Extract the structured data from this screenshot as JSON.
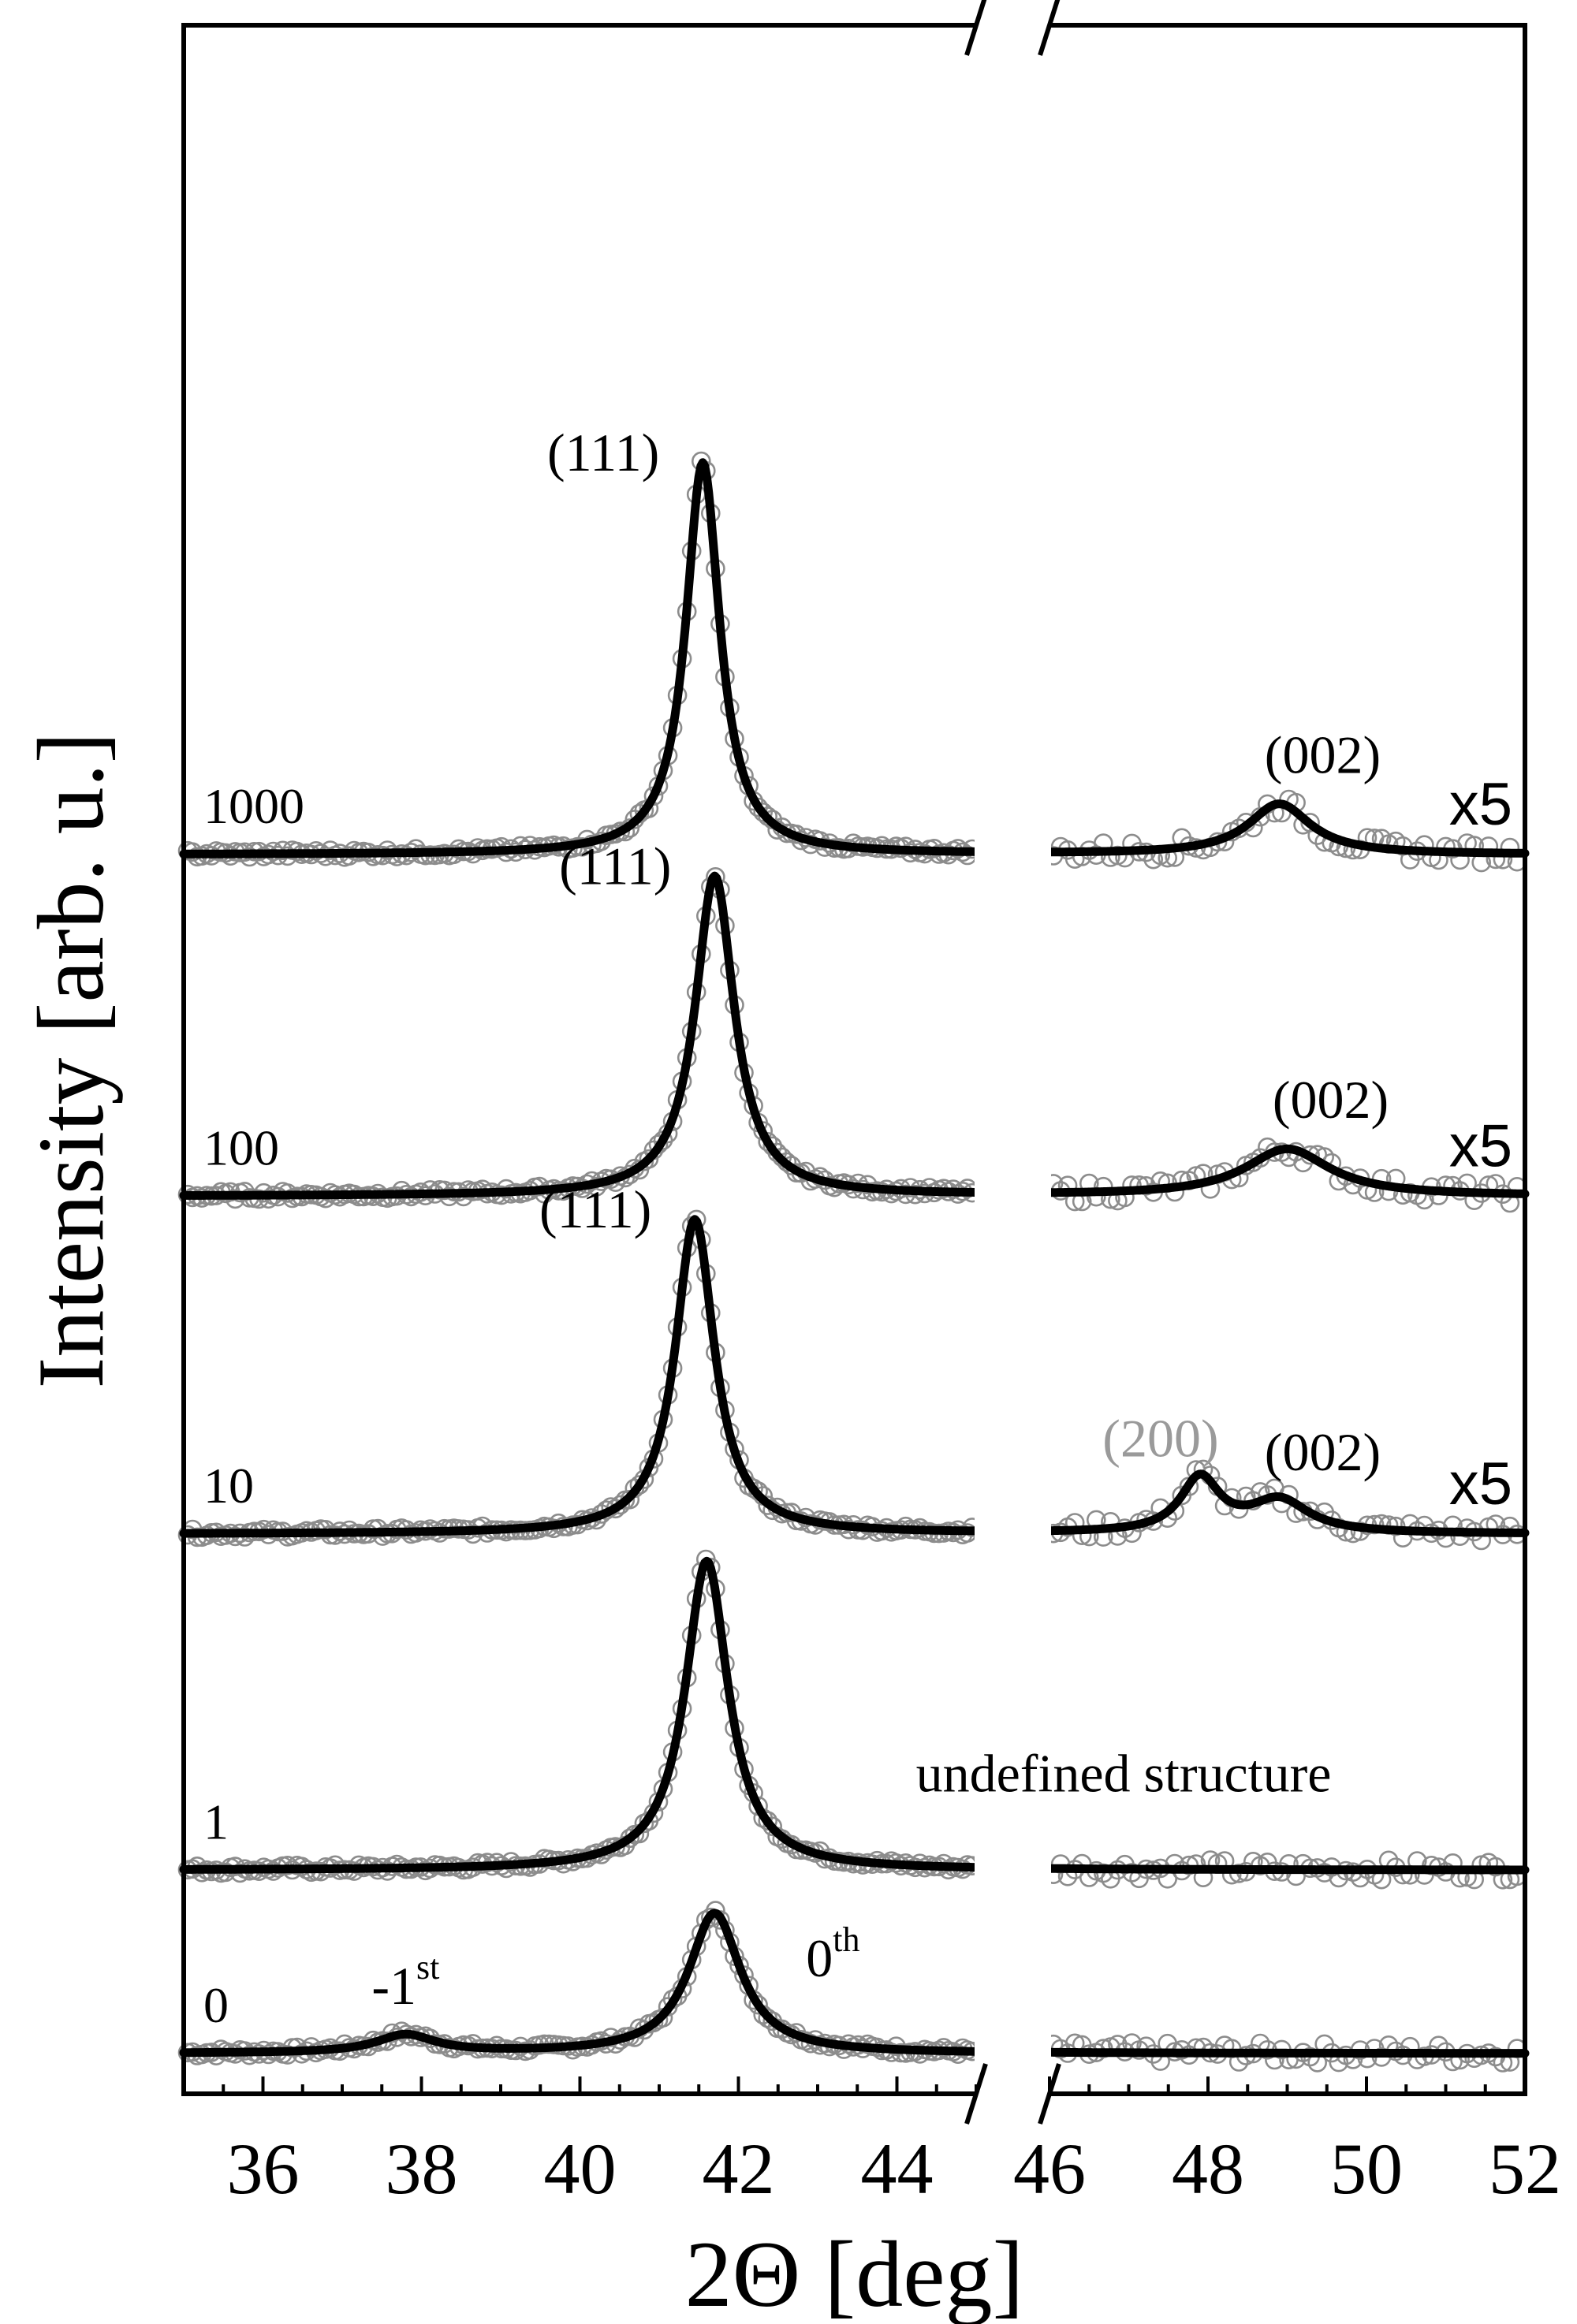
{
  "chart_data": {
    "type": "line",
    "xlabel": "2Θ [deg]",
    "ylabel": "Intensity [arb. u.]",
    "x_ticks": [
      "36",
      "38",
      "40",
      "42",
      "44",
      "46",
      "48",
      "50",
      "52"
    ],
    "xlim": [
      35,
      52
    ],
    "axis_break": [
      45,
      46
    ],
    "ylim": [
      0,
      1
    ],
    "grid": false,
    "legend": "none",
    "markers": "open circles (gray) = measured data; solid black line = fit",
    "colors": {
      "data_markers": "#8c8c8c",
      "fit_line": "#000000",
      "gray_label": "#9a9a9a"
    },
    "series": [
      {
        "name": "0",
        "baseline": 0.011,
        "right_scale": "",
        "peaks": [
          {
            "x": 37.8,
            "height": 0.01,
            "width": 0.45,
            "label": "-1",
            "label_sup": "st"
          },
          {
            "x": 41.7,
            "height": 0.078,
            "width": 0.4,
            "label": "0",
            "label_sup": "th"
          }
        ]
      },
      {
        "name": "1",
        "baseline": 0.113,
        "right_scale": "",
        "note": "undefined structure",
        "peaks": [
          {
            "x": 41.6,
            "height": 0.172,
            "width": 0.33,
            "label": ""
          }
        ]
      },
      {
        "name": "10",
        "baseline": 0.3,
        "right_scale": "x5",
        "peaks": [
          {
            "x": 41.45,
            "height": 0.175,
            "width": 0.3,
            "label": "(111)"
          },
          {
            "x": 47.9,
            "height": 0.03,
            "width": 0.3,
            "label": "(200)",
            "label_color": "gray"
          },
          {
            "x": 48.9,
            "height": 0.018,
            "width": 0.45,
            "label": "(002)"
          }
        ]
      },
      {
        "name": "100",
        "baseline": 0.488,
        "right_scale": "x5",
        "peaks": [
          {
            "x": 41.7,
            "height": 0.178,
            "width": 0.3,
            "label": "(111)"
          },
          {
            "x": 49.0,
            "height": 0.026,
            "width": 0.65,
            "label": "(002)"
          }
        ]
      },
      {
        "name": "1000",
        "baseline": 0.678,
        "right_scale": "x5",
        "peaks": [
          {
            "x": 41.55,
            "height": 0.218,
            "width": 0.26,
            "label": "(111)"
          },
          {
            "x": 48.9,
            "height": 0.028,
            "width": 0.48,
            "label": "(002)"
          }
        ]
      }
    ]
  }
}
